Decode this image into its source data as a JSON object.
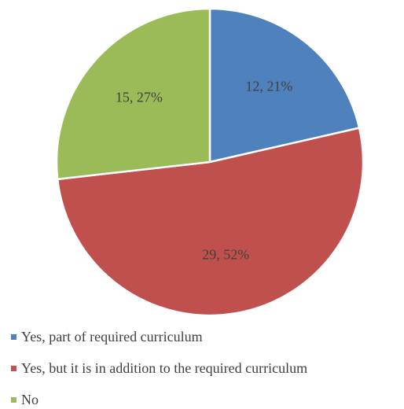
{
  "chart_data": {
    "type": "pie",
    "title": "",
    "slices": [
      {
        "name": "Yes, part of required curriculum",
        "value": 12,
        "percent": 21,
        "label": "12, 21%",
        "color": "#4f81bd"
      },
      {
        "name": "Yes, but it is in addition to the required curriculum",
        "value": 29,
        "percent": 52,
        "label": "29, 52%",
        "color": "#c0504d"
      },
      {
        "name": "No",
        "value": 15,
        "percent": 27,
        "label": "15, 27%",
        "color": "#9bbb59"
      }
    ],
    "start_angle": "top",
    "direction": "clockwise",
    "legend_position": "bottom"
  }
}
